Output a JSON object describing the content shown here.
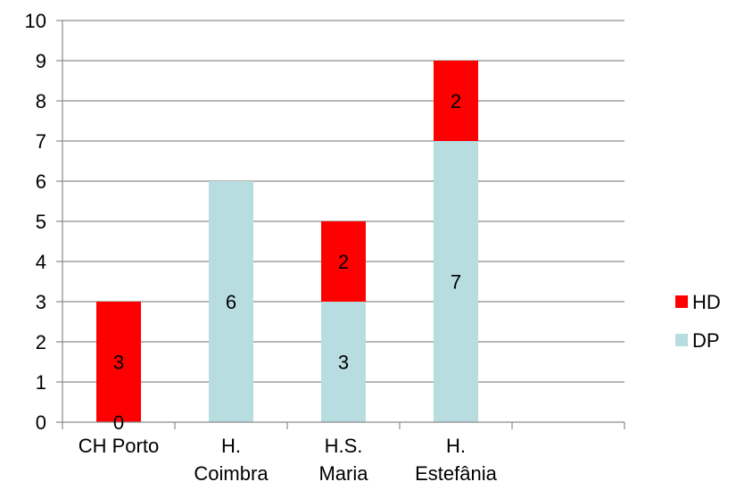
{
  "chart_data": {
    "type": "bar",
    "stacked": true,
    "categories": [
      [
        "CH Porto"
      ],
      [
        "H.",
        "Coimbra"
      ],
      [
        "H.S.",
        "Maria"
      ],
      [
        "H.",
        "Estefânia"
      ],
      [
        ""
      ]
    ],
    "series": [
      {
        "name": "DP",
        "color": "#b7dde0",
        "values": [
          0,
          6,
          3,
          7,
          null
        ],
        "labels": [
          "0",
          "6",
          "3",
          "7",
          ""
        ]
      },
      {
        "name": "HD",
        "color": "#ff0000",
        "values": [
          3,
          0,
          2,
          2,
          null
        ],
        "labels": [
          "3",
          "",
          "2",
          "2",
          ""
        ]
      }
    ],
    "y_ticks": [
      "0",
      "1",
      "2",
      "3",
      "4",
      "5",
      "6",
      "7",
      "8",
      "9",
      "10"
    ],
    "ylim": [
      0,
      10
    ],
    "grid": true,
    "legend": {
      "position": "right",
      "entries": [
        {
          "name": "HD",
          "color": "#ff0000"
        },
        {
          "name": "DP",
          "color": "#b7dde0"
        }
      ]
    }
  }
}
